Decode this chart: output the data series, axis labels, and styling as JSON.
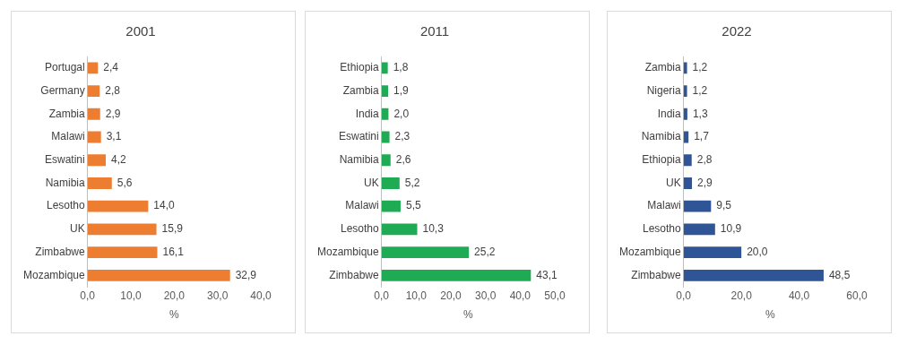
{
  "chart_data": [
    {
      "type": "bar",
      "orientation": "horizontal",
      "title": "2001",
      "xlabel": "%",
      "categories": [
        "Portugal",
        "Germany",
        "Zambia",
        "Malawi",
        "Eswatini",
        "Namibia",
        "Lesotho",
        "UK",
        "Zimbabwe",
        "Mozambique"
      ],
      "values": [
        2.4,
        2.8,
        2.9,
        3.1,
        4.2,
        5.6,
        14.0,
        15.9,
        16.1,
        32.9
      ],
      "value_labels": [
        "2,4",
        "2,8",
        "2,9",
        "3,1",
        "4,2",
        "5,6",
        "14,0",
        "15,9",
        "16,1",
        "32,9"
      ],
      "color": "#ed7d31",
      "xlim": [
        0,
        40
      ],
      "xticks": [
        {
          "value": 0,
          "label": "0,0"
        },
        {
          "value": 10,
          "label": "10,0"
        },
        {
          "value": 20,
          "label": "20,0"
        },
        {
          "value": 30,
          "label": "30,0"
        },
        {
          "value": 40,
          "label": "40,0"
        }
      ],
      "grid": false,
      "legend": false
    },
    {
      "type": "bar",
      "orientation": "horizontal",
      "title": "2011",
      "xlabel": "%",
      "categories": [
        "Ethiopia",
        "Zambia",
        "India",
        "Eswatini",
        "Namibia",
        "UK",
        "Malawi",
        "Lesotho",
        "Mozambique",
        "Zimbabwe"
      ],
      "values": [
        1.8,
        1.9,
        2.0,
        2.3,
        2.6,
        5.2,
        5.5,
        10.3,
        25.2,
        43.1
      ],
      "value_labels": [
        "1,8",
        "1,9",
        "2,0",
        "2,3",
        "2,6",
        "5,2",
        "5,5",
        "10,3",
        "25,2",
        "43,1"
      ],
      "color": "#1fab54",
      "xlim": [
        0,
        50
      ],
      "xticks": [
        {
          "value": 0,
          "label": "0,0"
        },
        {
          "value": 10,
          "label": "10,0"
        },
        {
          "value": 20,
          "label": "20,0"
        },
        {
          "value": 30,
          "label": "30,0"
        },
        {
          "value": 40,
          "label": "40,0"
        },
        {
          "value": 50,
          "label": "50,0"
        }
      ],
      "grid": false,
      "legend": false
    },
    {
      "type": "bar",
      "orientation": "horizontal",
      "title": "2022",
      "xlabel": "%",
      "categories": [
        "Zambia",
        "Nigeria",
        "India",
        "Namibia",
        "Ethiopia",
        "UK",
        "Malawi",
        "Lesotho",
        "Mozambique",
        "Zimbabwe"
      ],
      "values": [
        1.2,
        1.2,
        1.3,
        1.7,
        2.8,
        2.9,
        9.5,
        10.9,
        20.0,
        48.5
      ],
      "value_labels": [
        "1,2",
        "1,2",
        "1,3",
        "1,7",
        "2,8",
        "2,9",
        "9,5",
        "10,9",
        "20,0",
        "48,5"
      ],
      "color": "#2f5597",
      "xlim": [
        0,
        60
      ],
      "xticks": [
        {
          "value": 0,
          "label": "0,0"
        },
        {
          "value": 20,
          "label": "20,0"
        },
        {
          "value": 40,
          "label": "40,0"
        },
        {
          "value": 60,
          "label": "60,0"
        }
      ],
      "grid": false,
      "legend": false
    }
  ]
}
